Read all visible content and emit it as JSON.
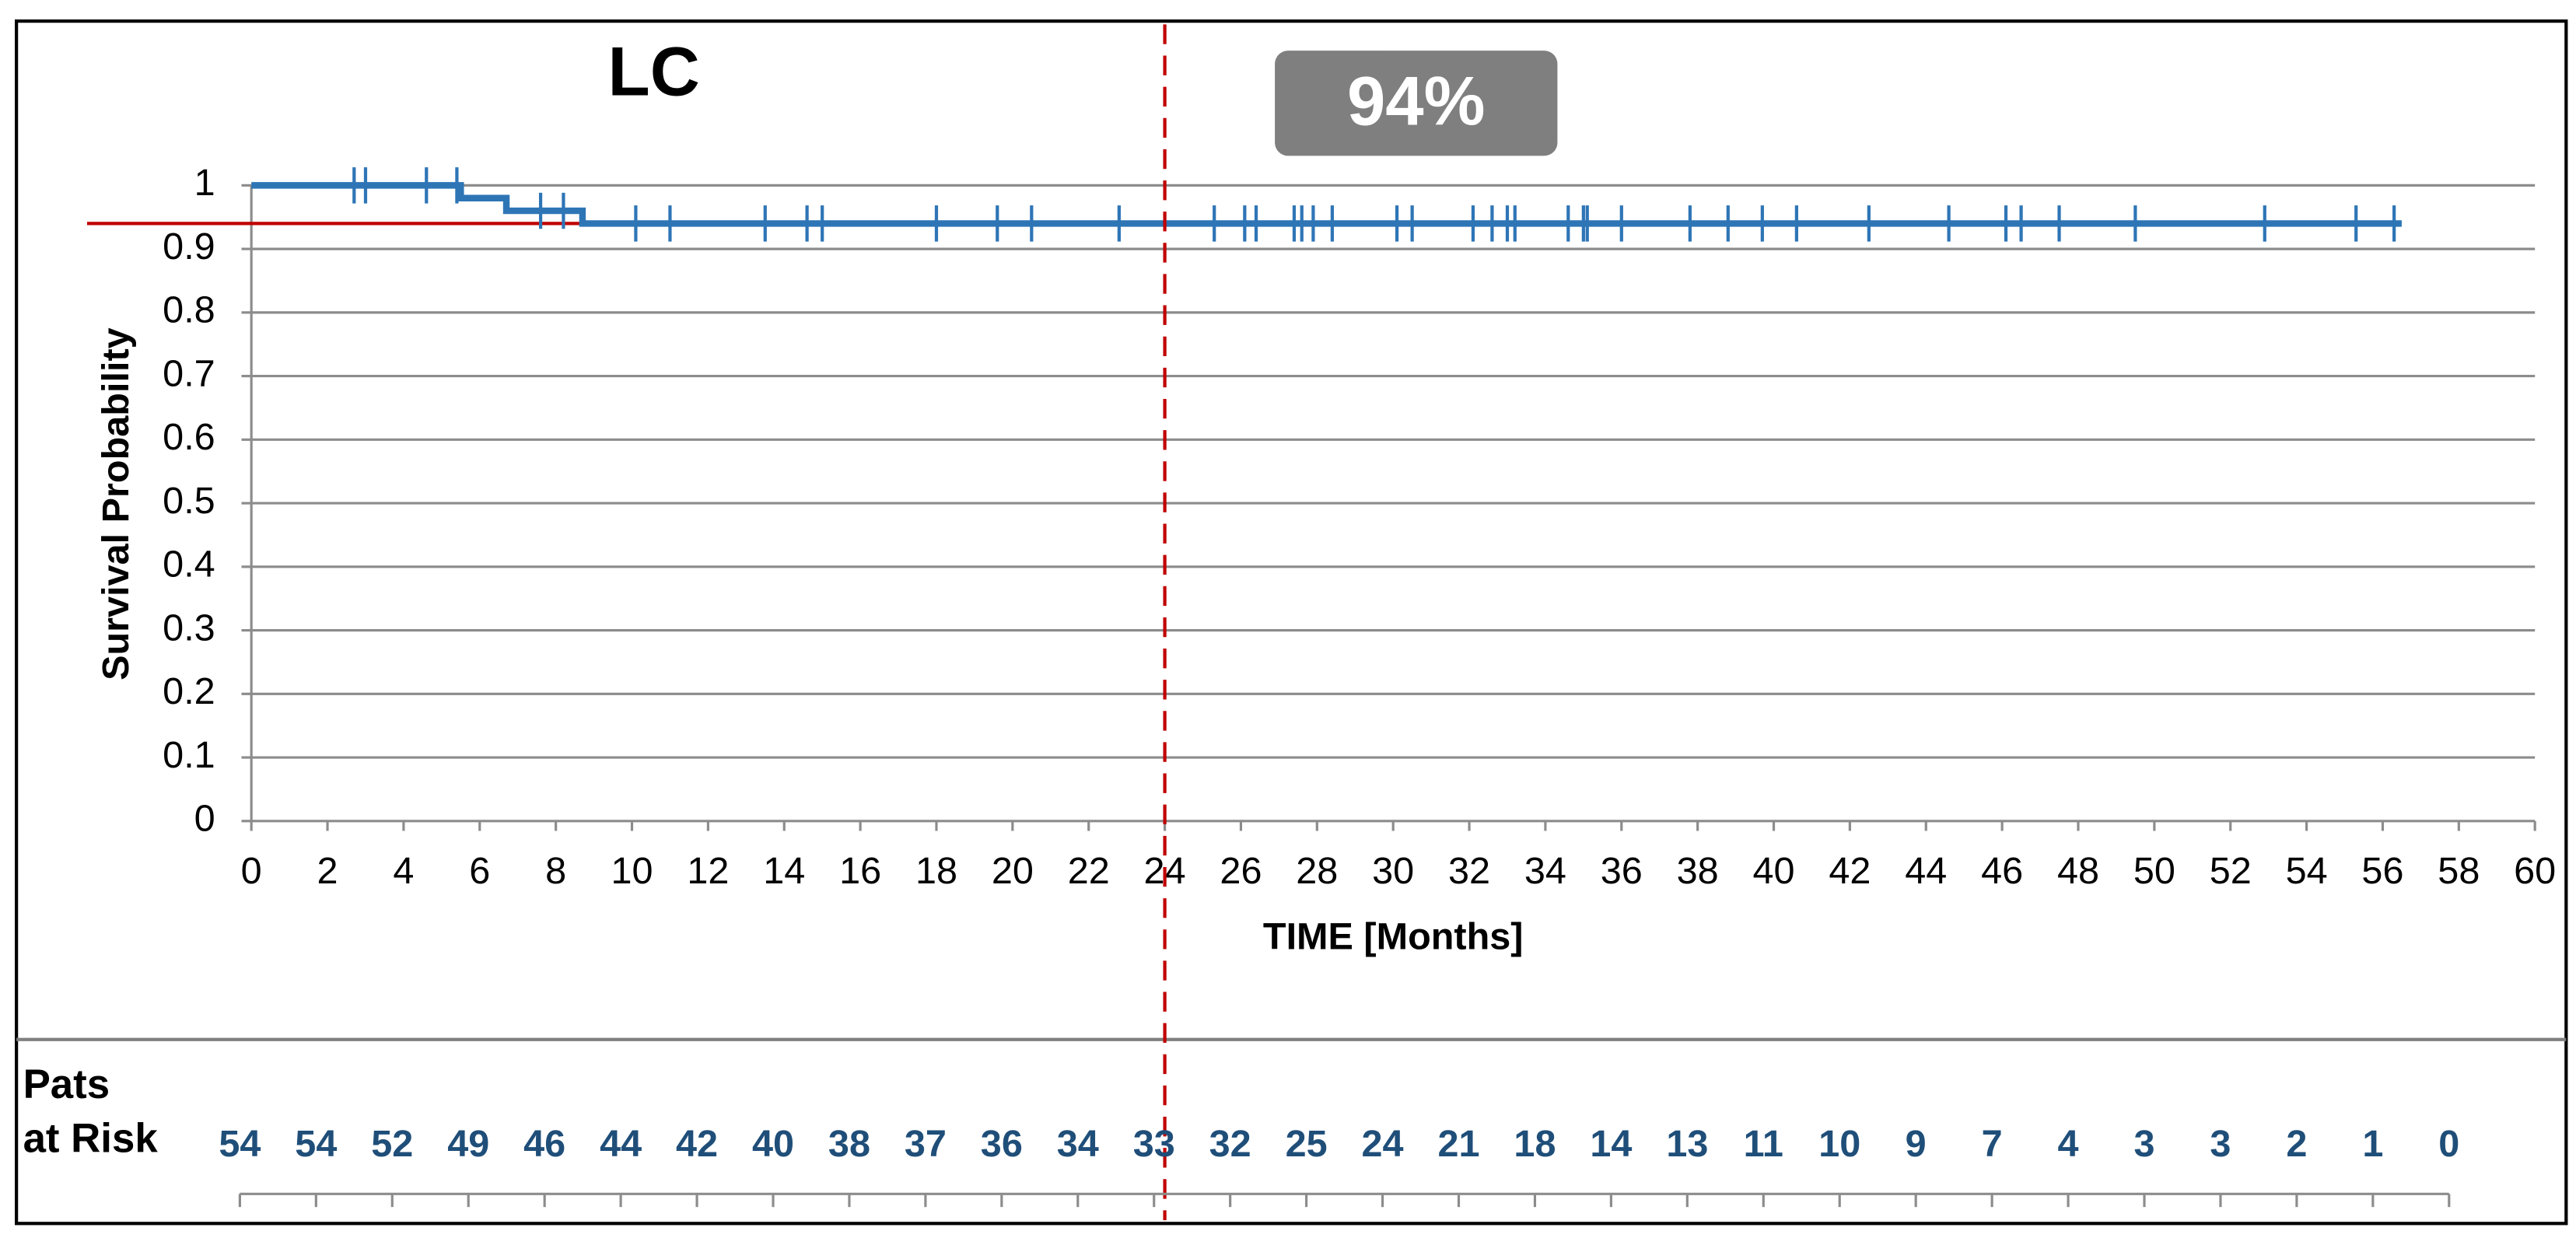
{
  "chart_data": {
    "type": "km",
    "title": "LC",
    "annotation": "94%",
    "y_label": "Survival Probability",
    "x_label": "TIME [Months]",
    "xlim": [
      0,
      60
    ],
    "xticks": [
      0,
      2,
      4,
      6,
      8,
      10,
      12,
      14,
      16,
      18,
      20,
      22,
      24,
      26,
      28,
      30,
      32,
      34,
      36,
      38,
      40,
      42,
      44,
      46,
      48,
      50,
      52,
      54,
      56,
      58,
      60
    ],
    "ylim": [
      0,
      1
    ],
    "yticks": [
      0,
      0.1,
      0.2,
      0.3,
      0.4,
      0.5,
      0.6,
      0.7,
      0.8,
      0.9,
      1
    ],
    "grid": true,
    "color": "#2e75b6",
    "curve": {
      "x": [
        0,
        5.5,
        5.5,
        6.7,
        6.7,
        8.7,
        8.7,
        56.5
      ],
      "y": [
        1,
        1,
        0.98,
        0.98,
        0.96,
        0.96,
        0.94,
        0.94
      ]
    },
    "censored": {
      "x": [
        2.7,
        3.0,
        4.6,
        5.4,
        7.6,
        8.2,
        10.1,
        11.0,
        13.5,
        14.6,
        15.0,
        18.0,
        19.6,
        20.5,
        22.8,
        25.3,
        26.1,
        26.4,
        27.4,
        27.6,
        27.9,
        28.4,
        30.1,
        30.5,
        32.1,
        32.6,
        33.0,
        33.2,
        34.6,
        35.0,
        35.1,
        36.0,
        37.8,
        38.8,
        39.7,
        40.6,
        42.5,
        44.6,
        46.1,
        46.5,
        47.5,
        49.5,
        52.9,
        55.3,
        56.3
      ],
      "y": [
        1,
        1,
        1,
        1,
        0.96,
        0.96,
        0.94,
        0.94,
        0.94,
        0.94,
        0.94,
        0.94,
        0.94,
        0.94,
        0.94,
        0.94,
        0.94,
        0.94,
        0.94,
        0.94,
        0.94,
        0.94,
        0.94,
        0.94,
        0.94,
        0.94,
        0.94,
        0.94,
        0.94,
        0.94,
        0.94,
        0.94,
        0.94,
        0.94,
        0.94,
        0.94,
        0.94,
        0.94,
        0.94,
        0.94,
        0.94,
        0.94,
        0.94,
        0.94,
        0.94
      ]
    },
    "reference_line": {
      "y": 0.94,
      "x_end": 12,
      "color": "#c00000"
    },
    "marker_x": 24,
    "risk_title": [
      "Pats",
      "at Risk"
    ],
    "at_risk": [
      54,
      54,
      52,
      49,
      46,
      44,
      42,
      40,
      38,
      37,
      36,
      34,
      33,
      32,
      25,
      24,
      21,
      18,
      14,
      13,
      11,
      10,
      9,
      7,
      4,
      3,
      3,
      2,
      1,
      0
    ]
  }
}
